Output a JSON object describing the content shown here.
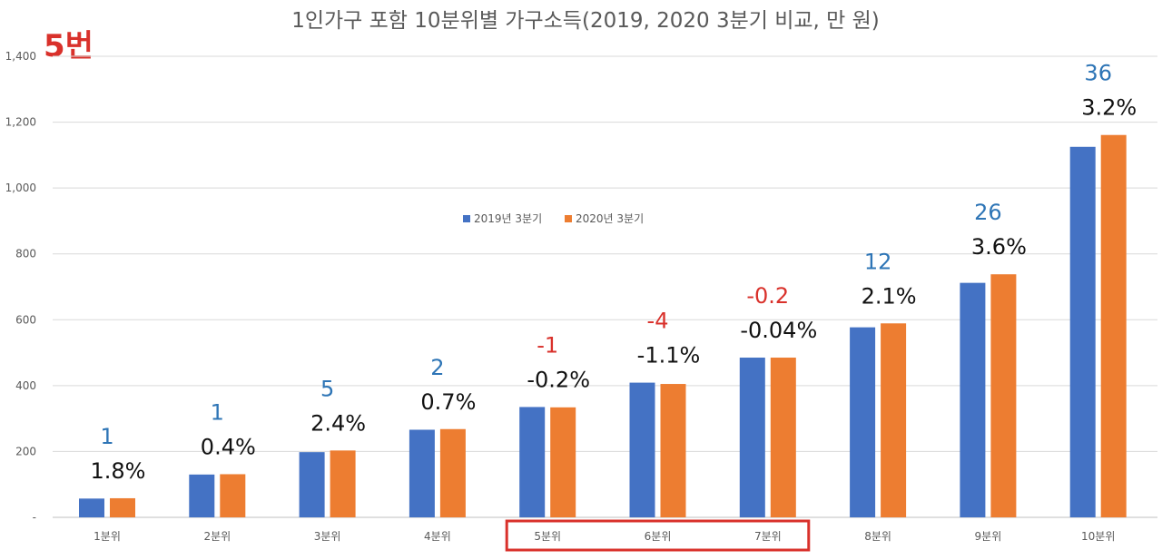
{
  "badge": "5번",
  "chart_data": {
    "type": "bar",
    "title": "1인가구 포함 10분위별 가구소득(2019, 2020 3분기 비교, 만 원)",
    "categories": [
      "1분위",
      "2분위",
      "3분위",
      "4분위",
      "5분위",
      "6분위",
      "7분위",
      "8분위",
      "9분위",
      "10분위"
    ],
    "series": [
      {
        "name": "2019년 3분기",
        "color": "#4472c4",
        "values": [
          57,
          130,
          198,
          266,
          335,
          409,
          485,
          577,
          712,
          1125
        ]
      },
      {
        "name": "2020년 3분기",
        "color": "#ed7d31",
        "values": [
          58,
          131,
          203,
          268,
          334,
          405,
          485,
          589,
          738,
          1161
        ]
      }
    ],
    "y_ticks": [
      "-",
      "200",
      "400",
      "600",
      "800",
      "1,000",
      "1,200",
      "1,400"
    ],
    "ylim": [
      0,
      1400
    ],
    "grid": true,
    "legend_position": "center",
    "annotations": {
      "diff": [
        "1",
        "1",
        "5",
        "2",
        "-1",
        "-4",
        "-0.2",
        "12",
        "26",
        "36"
      ],
      "pct": [
        "1.8%",
        "0.4%",
        "2.4%",
        "0.7%",
        "-0.2%",
        "-1.1%",
        "-0.04%",
        "2.1%",
        "3.6%",
        "3.2%"
      ],
      "positive_color": "#2e75b6",
      "negative_color": "#d9312b"
    },
    "highlight_box": {
      "categories": [
        "5분위",
        "6분위",
        "7분위"
      ],
      "color": "#d9312b"
    }
  }
}
